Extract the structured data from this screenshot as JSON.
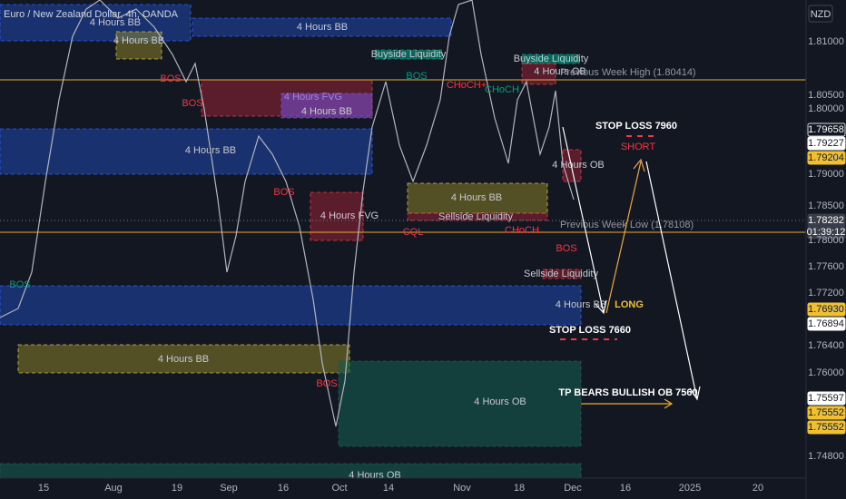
{
  "header": {
    "title": "Euro / New Zealand Dollar, 4h, OANDA",
    "currency": "NZD"
  },
  "price_axis": [
    "1.81000",
    "1.80500",
    "1.80000",
    "1.79658",
    "1.79227",
    "1.79204",
    "1.79000",
    "1.78500",
    "1.78282",
    "01:39:12",
    "1.78000",
    "1.77600",
    "1.77200",
    "1.76930",
    "1.76894",
    "1.76400",
    "1.76000",
    "1.75597",
    "1.75552",
    "1.75552",
    "1.74800"
  ],
  "time_axis": [
    "15",
    "Aug",
    "19",
    "Sep",
    "16",
    "Oct",
    "14",
    "Nov",
    "18",
    "Dec",
    "16",
    "2025",
    "20"
  ],
  "zones": [
    "4 Hours BB",
    "4 Hours BB",
    "4 Hours BB",
    "4 Hours FVG",
    "4 Hours BB",
    "4 Hours BB",
    "4 Hours FVG",
    "4 Hours BB",
    "Sellside Liquidity",
    "Buyside Liquidity",
    "Buyside Liquidity",
    "4 Hours OB",
    "4 Hours OB",
    "Sellside Liquidity",
    "4 Hours BB",
    "4 Hours BB",
    "4 Hours OB",
    "4 Hours OB"
  ],
  "annotations": [
    "BOS",
    "BOS",
    "BOS",
    "BOS",
    "BOS",
    "BOS",
    "BOS",
    "CHoCH+",
    "CHoCH",
    "CHoCH",
    "CQL",
    "Previous Week High (1.80414)",
    "Previous Week Low (1.78108)",
    "STOP LOSS 7960",
    "SHORT",
    "LONG",
    "STOP LOSS 7660",
    "TP BEARS BULLISH OB 7560"
  ]
}
